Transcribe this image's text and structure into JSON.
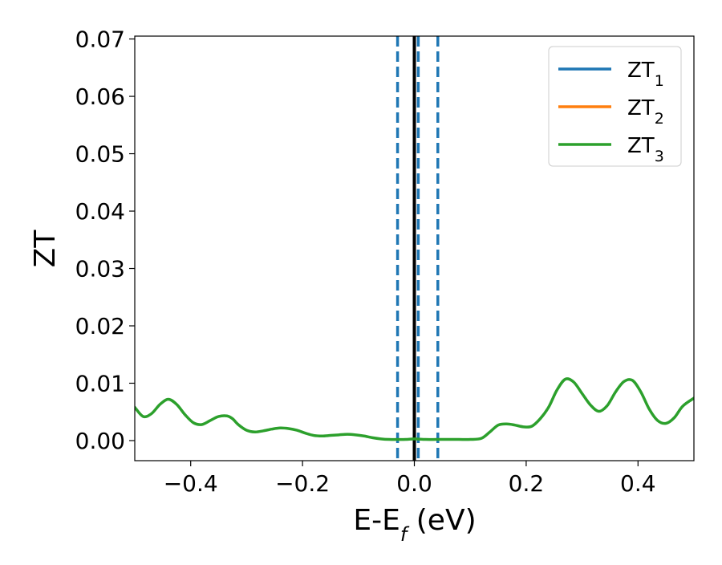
{
  "chart_data": {
    "type": "line",
    "xlabel": "E-E",
    "xlabel_sub": "f",
    "xlabel_unit": " (eV)",
    "ylabel": "ZT",
    "xlim": [
      -0.5,
      0.5
    ],
    "ylim": [
      -0.0035,
      0.0705
    ],
    "grid": false,
    "legend_position": "top-right",
    "x_ticks": [
      -0.4,
      -0.2,
      0.0,
      0.2,
      0.4
    ],
    "x_tick_labels": [
      "−0.4",
      "−0.2",
      "0.0",
      "0.2",
      "0.4"
    ],
    "y_ticks": [
      0.0,
      0.01,
      0.02,
      0.03,
      0.04,
      0.05,
      0.06,
      0.07
    ],
    "y_tick_labels": [
      "0.00",
      "0.01",
      "0.02",
      "0.03",
      "0.04",
      "0.05",
      "0.06",
      "0.07"
    ],
    "series": [
      {
        "name": "ZT",
        "subscript": "1",
        "color": "#1f77b4",
        "x": [],
        "y": []
      },
      {
        "name": "ZT",
        "subscript": "2",
        "color": "#ff7f0e",
        "x": [],
        "y": []
      },
      {
        "name": "ZT",
        "subscript": "3",
        "color": "#2ca02c",
        "x": [
          -0.5,
          -0.485,
          -0.47,
          -0.455,
          -0.44,
          -0.425,
          -0.41,
          -0.395,
          -0.38,
          -0.365,
          -0.35,
          -0.335,
          -0.325,
          -0.315,
          -0.3,
          -0.285,
          -0.27,
          -0.255,
          -0.24,
          -0.225,
          -0.21,
          -0.195,
          -0.18,
          -0.165,
          -0.15,
          -0.135,
          -0.12,
          -0.105,
          -0.09,
          -0.075,
          -0.06,
          -0.045,
          -0.03,
          -0.015,
          0.0,
          0.02,
          0.04,
          0.06,
          0.08,
          0.1,
          0.12,
          0.135,
          0.15,
          0.165,
          0.18,
          0.195,
          0.21,
          0.225,
          0.24,
          0.255,
          0.27,
          0.285,
          0.3,
          0.315,
          0.33,
          0.345,
          0.36,
          0.375,
          0.39,
          0.405,
          0.42,
          0.435,
          0.45,
          0.465,
          0.48,
          0.5
        ],
        "y": [
          0.0058,
          0.0042,
          0.0047,
          0.0063,
          0.0072,
          0.0063,
          0.0045,
          0.0031,
          0.0028,
          0.0035,
          0.0042,
          0.0043,
          0.0038,
          0.0028,
          0.0018,
          0.0015,
          0.0017,
          0.002,
          0.0022,
          0.0021,
          0.0018,
          0.0013,
          0.0009,
          0.0008,
          0.0009,
          0.001,
          0.0011,
          0.001,
          0.0008,
          0.0005,
          0.0003,
          0.0002,
          0.0002,
          0.0002,
          0.0003,
          0.0002,
          0.0002,
          0.0002,
          0.0002,
          0.0002,
          0.0004,
          0.0015,
          0.0027,
          0.0029,
          0.0027,
          0.0024,
          0.0025,
          0.0038,
          0.0058,
          0.0088,
          0.0107,
          0.0102,
          0.0082,
          0.0062,
          0.0051,
          0.0061,
          0.0085,
          0.0103,
          0.0105,
          0.0085,
          0.0055,
          0.0035,
          0.003,
          0.004,
          0.006,
          0.0074
        ]
      }
    ],
    "vertical_lines": [
      {
        "x": 0.0,
        "style": "solid",
        "color": "#000000"
      },
      {
        "x": -0.03,
        "style": "dashed",
        "color": "#1f77b4"
      },
      {
        "x": 0.007,
        "style": "dashed",
        "color": "#1f77b4"
      },
      {
        "x": 0.042,
        "style": "dashed",
        "color": "#1f77b4"
      }
    ]
  }
}
